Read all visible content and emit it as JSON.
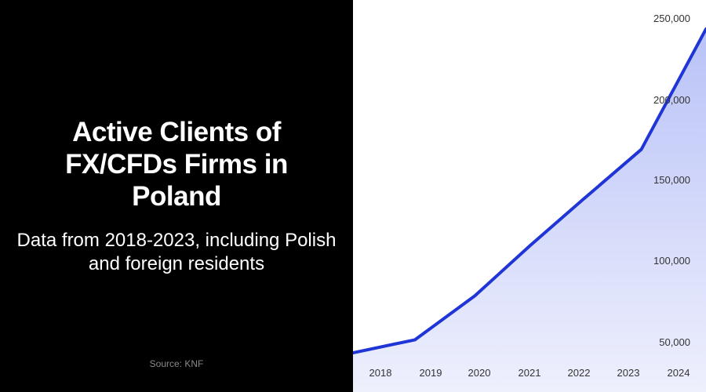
{
  "left": {
    "title": "Active Clients of FX/CFDs Firms in Poland",
    "subtitle": "Data from 2018-2023, including Polish and foreign residents",
    "source": "Source: KNF"
  },
  "colors": {
    "line": "#1f35d6",
    "area_top": "#b9c2f7",
    "area_bottom": "#eef0fd",
    "left_bg": "#000000"
  },
  "chart_data": {
    "type": "area",
    "x_tick_labels": [
      "2018",
      "2019",
      "2020",
      "2021",
      "2022",
      "2023",
      "2024"
    ],
    "x_range": [
      2017.97,
      2024.52
    ],
    "y_tick_values": [
      50000,
      100000,
      150000,
      200000,
      250000
    ],
    "y_tick_labels": [
      "50,000",
      "100,000",
      "150,000",
      "200,000",
      "250,000"
    ],
    "y_axis_position": "right",
    "ylim": [
      45000,
      250000
    ],
    "series": [
      {
        "x": [
          2017.97,
          2019.12,
          2020.23,
          2021.26,
          2022.23,
          2023.32,
          2024.52
        ],
        "values": [
          44000,
          52000,
          79000,
          110000,
          138000,
          169000,
          243000
        ]
      }
    ],
    "grid": false,
    "legend": "none"
  }
}
